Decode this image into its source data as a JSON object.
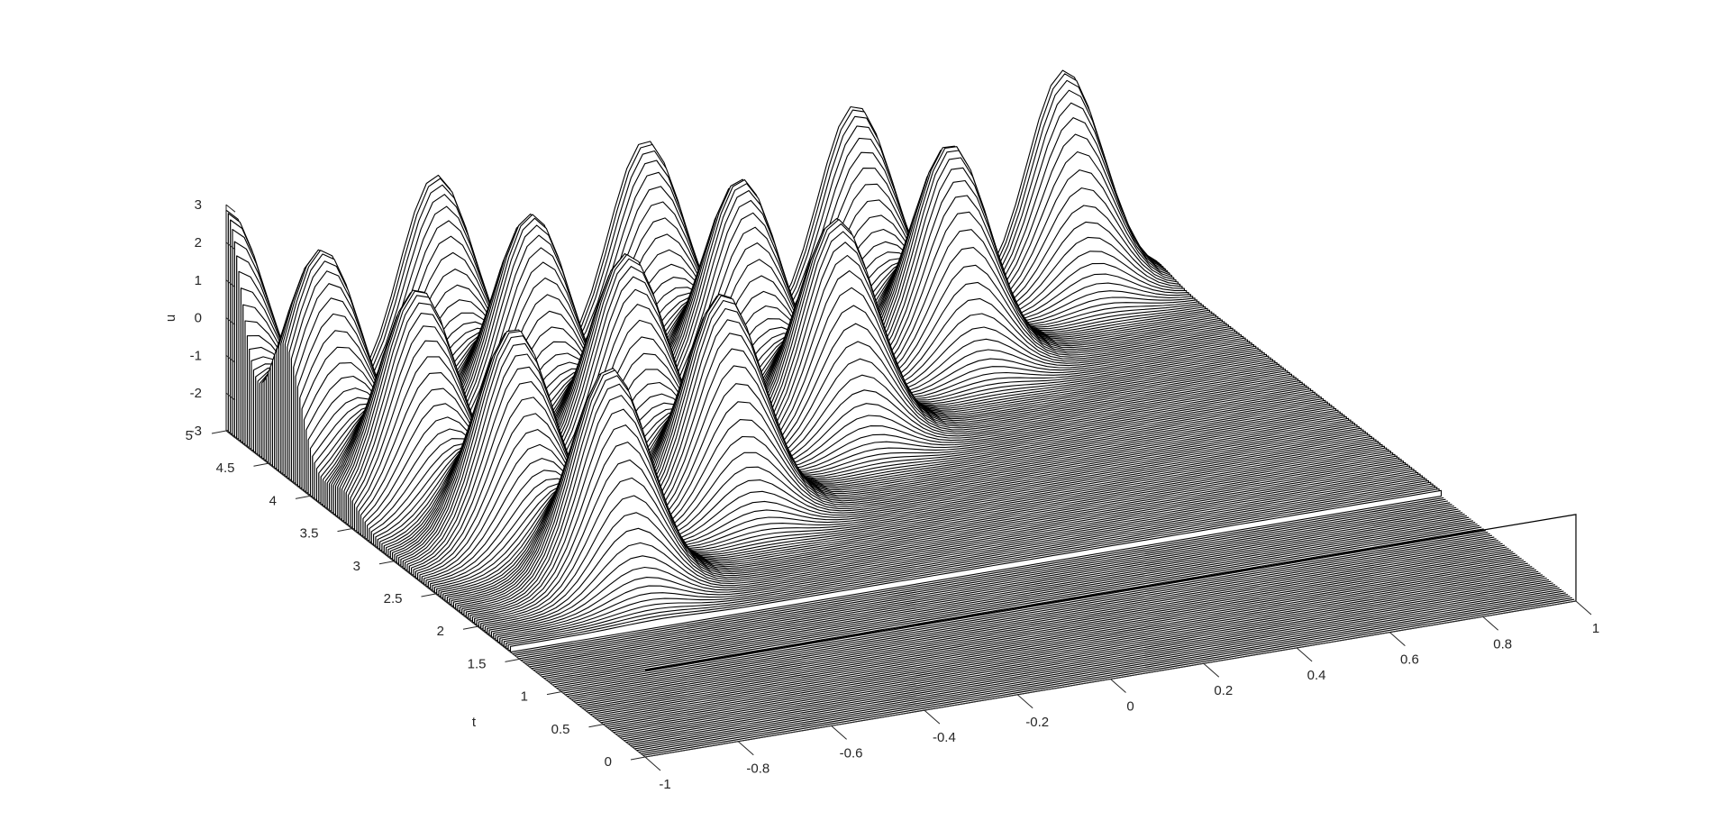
{
  "chart_data": {
    "type": "waterfall",
    "title": "",
    "axes": {
      "x": {
        "label": "",
        "range": [
          -1,
          1
        ],
        "ticks": [
          "-1",
          "-0.8",
          "-0.6",
          "-0.4",
          "-0.2",
          "0",
          "0.2",
          "0.4",
          "0.6",
          "0.8",
          "1"
        ]
      },
      "t": {
        "label": "t",
        "range": [
          0,
          5
        ],
        "ticks": [
          "0",
          "0.5",
          "1",
          "1.5",
          "2",
          "2.5",
          "3",
          "3.5",
          "4",
          "4.5",
          "5"
        ]
      },
      "u": {
        "label": "u",
        "range": [
          -3,
          3
        ],
        "ticks": [
          "-3",
          "-2",
          "-1",
          "0",
          "1",
          "2",
          "3"
        ]
      }
    },
    "surface": {
      "t_samples": 200,
      "x_samples": 80,
      "hump_amplitude": 3,
      "hump_centers_x_by_row": [
        [
          -1.0,
          -0.55,
          -0.1,
          0.35,
          0.8
        ],
        [
          -0.92,
          -0.47,
          -0.02,
          0.43
        ],
        [
          -0.84,
          -0.39,
          0.06
        ],
        [
          -0.76,
          -0.31
        ],
        [
          -0.68
        ]
      ],
      "hump_rows_t": [
        5.0,
        4.3,
        3.6,
        2.9,
        2.2
      ],
      "plateau_t_start": 1.6
    },
    "grid": false,
    "colors": {
      "line": "#000000",
      "background": "#ffffff",
      "axis": "#262626"
    }
  }
}
